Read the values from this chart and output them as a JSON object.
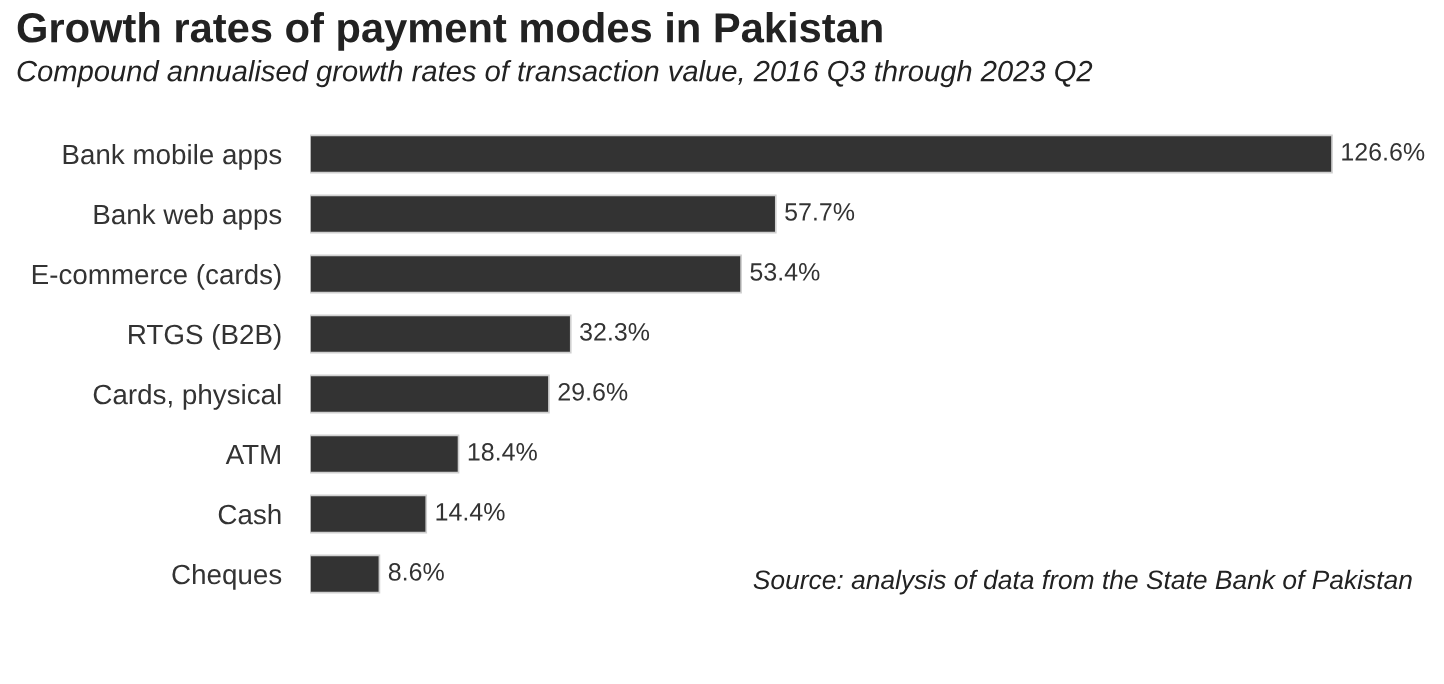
{
  "chart_data": {
    "type": "bar",
    "orientation": "horizontal",
    "title": "Growth rates of payment modes in Pakistan",
    "subtitle": "Compound annualised growth rates of transaction value, 2016 Q3 through 2023 Q2",
    "categories": [
      "Bank mobile apps",
      "Bank web apps",
      "E-commerce (cards)",
      "RTGS (B2B)",
      "Cards, physical",
      "ATM",
      "Cash",
      "Cheques"
    ],
    "values": [
      126.6,
      57.7,
      53.4,
      32.3,
      29.6,
      18.4,
      14.4,
      8.6
    ],
    "value_labels": [
      "126.6%",
      "57.7%",
      "53.4%",
      "32.3%",
      "29.6%",
      "18.4%",
      "14.4%",
      "8.6%"
    ],
    "color": "#333333",
    "annotations": [
      "Source: analysis of data from the State Bank of Pakistan"
    ]
  }
}
